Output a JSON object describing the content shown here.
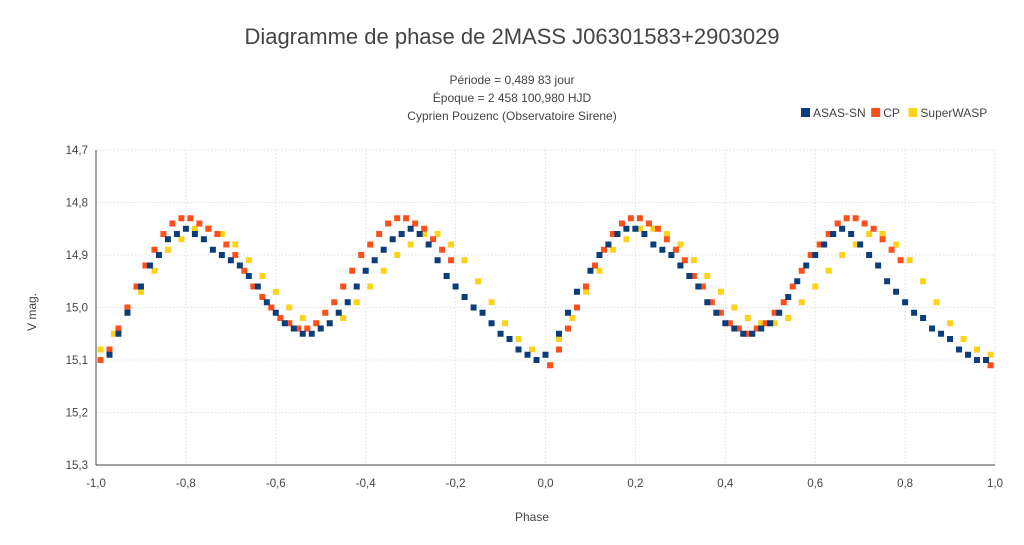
{
  "chart_data": {
    "type": "scatter",
    "title": "Diagramme de phase de 2MASS J06301583+2903029",
    "subtitle_lines": [
      "Période = 0,489 83 jour",
      "Époque = 2 458 100,980 HJD",
      "Cyprien Pouzenc (Observatoire Sirene)"
    ],
    "xlabel": "Phase",
    "ylabel": "V mag.",
    "xlim": [
      -1.0,
      1.0
    ],
    "ylim": [
      15.3,
      14.7
    ],
    "y_inverted": true,
    "x_ticks": [
      "-1,0",
      "-0,8",
      "-0,6",
      "-0,4",
      "-0,2",
      "0,0",
      "0,2",
      "0,4",
      "0,6",
      "0,8",
      "1,0"
    ],
    "y_ticks": [
      "14,7",
      "14,8",
      "14,9",
      "15,0",
      "15,1",
      "15,2",
      "15,3"
    ],
    "grid": true,
    "legend_position": "top-right",
    "series": [
      {
        "name": "ASAS-SN",
        "color": "#0b3d7a",
        "x": [
          -0.97,
          -0.95,
          -0.93,
          -0.9,
          -0.88,
          -0.86,
          -0.84,
          -0.82,
          -0.8,
          -0.78,
          -0.76,
          -0.74,
          -0.72,
          -0.7,
          -0.68,
          -0.66,
          -0.64,
          -0.62,
          -0.6,
          -0.58,
          -0.56,
          -0.54,
          -0.52,
          -0.5,
          -0.48,
          -0.46,
          -0.44,
          -0.42,
          -0.4,
          -0.38,
          -0.36,
          -0.34,
          -0.32,
          -0.3,
          -0.28,
          -0.26,
          -0.24,
          -0.22,
          -0.2,
          -0.18,
          -0.16,
          -0.14,
          -0.12,
          -0.1,
          -0.08,
          -0.06,
          -0.04,
          -0.02,
          0.0,
          0.03,
          0.05,
          0.07,
          0.1,
          0.12,
          0.14,
          0.16,
          0.18,
          0.2,
          0.22,
          0.24,
          0.26,
          0.28,
          0.3,
          0.32,
          0.34,
          0.36,
          0.38,
          0.4,
          0.42,
          0.44,
          0.46,
          0.48,
          0.5,
          0.52,
          0.54,
          0.56,
          0.58,
          0.6,
          0.62,
          0.64,
          0.66,
          0.68,
          0.7,
          0.72,
          0.74,
          0.76,
          0.78,
          0.8,
          0.82,
          0.84,
          0.86,
          0.88,
          0.9,
          0.92,
          0.94,
          0.96,
          0.98
        ],
        "y": [
          15.09,
          15.05,
          15.01,
          14.96,
          14.92,
          14.9,
          14.87,
          14.86,
          14.85,
          14.86,
          14.87,
          14.89,
          14.9,
          14.91,
          14.92,
          14.94,
          14.96,
          14.99,
          15.01,
          15.03,
          15.04,
          15.05,
          15.05,
          15.04,
          15.03,
          15.01,
          14.99,
          14.96,
          14.93,
          14.91,
          14.89,
          14.87,
          14.86,
          14.85,
          14.86,
          14.88,
          14.91,
          14.94,
          14.96,
          14.98,
          15.0,
          15.01,
          15.03,
          15.05,
          15.06,
          15.08,
          15.09,
          15.1,
          15.09,
          15.05,
          15.01,
          14.97,
          14.93,
          14.9,
          14.88,
          14.86,
          14.85,
          14.85,
          14.86,
          14.88,
          14.89,
          14.9,
          14.92,
          14.94,
          14.96,
          14.99,
          15.01,
          15.03,
          15.04,
          15.05,
          15.05,
          15.04,
          15.03,
          15.01,
          14.98,
          14.95,
          14.92,
          14.9,
          14.88,
          14.86,
          14.85,
          14.86,
          14.88,
          14.9,
          14.92,
          14.95,
          14.97,
          14.99,
          15.01,
          15.02,
          15.04,
          15.05,
          15.06,
          15.08,
          15.09,
          15.1,
          15.1
        ]
      },
      {
        "name": "CP",
        "color": "#ff4f1a",
        "x": [
          -0.99,
          -0.97,
          -0.95,
          -0.93,
          -0.91,
          -0.89,
          -0.87,
          -0.85,
          -0.83,
          -0.81,
          -0.79,
          -0.77,
          -0.75,
          -0.73,
          -0.71,
          -0.69,
          -0.67,
          -0.65,
          -0.63,
          -0.61,
          -0.59,
          -0.57,
          -0.55,
          -0.53,
          -0.51,
          -0.49,
          -0.47,
          -0.45,
          -0.43,
          -0.41,
          -0.39,
          -0.37,
          -0.35,
          -0.33,
          -0.31,
          -0.29,
          -0.27,
          -0.25,
          -0.23,
          -0.21,
          0.01,
          0.03,
          0.05,
          0.07,
          0.09,
          0.11,
          0.13,
          0.15,
          0.17,
          0.19,
          0.21,
          0.23,
          0.25,
          0.27,
          0.29,
          0.31,
          0.33,
          0.35,
          0.37,
          0.39,
          0.41,
          0.43,
          0.45,
          0.47,
          0.49,
          0.51,
          0.53,
          0.55,
          0.57,
          0.59,
          0.61,
          0.63,
          0.65,
          0.67,
          0.69,
          0.71,
          0.73,
          0.75,
          0.77,
          0.79,
          0.99
        ],
        "y": [
          15.1,
          15.08,
          15.04,
          15.0,
          14.96,
          14.92,
          14.89,
          14.86,
          14.84,
          14.83,
          14.83,
          14.84,
          14.85,
          14.86,
          14.88,
          14.9,
          14.93,
          14.96,
          14.98,
          15.0,
          15.02,
          15.03,
          15.04,
          15.04,
          15.03,
          15.01,
          14.99,
          14.96,
          14.93,
          14.9,
          14.88,
          14.86,
          14.84,
          14.83,
          14.83,
          14.84,
          14.85,
          14.87,
          14.89,
          14.91,
          15.11,
          15.08,
          15.04,
          15.0,
          14.96,
          14.92,
          14.89,
          14.86,
          14.84,
          14.83,
          14.83,
          14.84,
          14.85,
          14.87,
          14.89,
          14.91,
          14.94,
          14.96,
          14.99,
          15.01,
          15.03,
          15.04,
          15.05,
          15.04,
          15.03,
          15.01,
          14.99,
          14.96,
          14.93,
          14.9,
          14.88,
          14.86,
          14.84,
          14.83,
          14.83,
          14.84,
          14.85,
          14.87,
          14.89,
          14.91,
          15.11
        ]
      },
      {
        "name": "SuperWASP",
        "color": "#ffd21a",
        "x": [
          -0.99,
          -0.96,
          -0.93,
          -0.9,
          -0.87,
          -0.84,
          -0.81,
          -0.78,
          -0.75,
          -0.72,
          -0.69,
          -0.66,
          -0.63,
          -0.6,
          -0.57,
          -0.54,
          -0.51,
          -0.48,
          -0.45,
          -0.42,
          -0.39,
          -0.36,
          -0.33,
          -0.3,
          -0.27,
          -0.24,
          -0.21,
          -0.18,
          -0.15,
          -0.12,
          -0.09,
          -0.06,
          -0.03,
          0.0,
          0.03,
          0.06,
          0.09,
          0.12,
          0.15,
          0.18,
          0.21,
          0.24,
          0.27,
          0.3,
          0.33,
          0.36,
          0.39,
          0.42,
          0.45,
          0.48,
          0.51,
          0.54,
          0.57,
          0.6,
          0.63,
          0.66,
          0.69,
          0.72,
          0.75,
          0.78,
          0.81,
          0.84,
          0.87,
          0.9,
          0.93,
          0.96,
          0.99
        ],
        "y": [
          15.08,
          15.05,
          15.01,
          14.97,
          14.93,
          14.89,
          14.87,
          14.85,
          14.85,
          14.86,
          14.88,
          14.91,
          14.94,
          14.97,
          15.0,
          15.02,
          15.03,
          15.03,
          15.02,
          14.99,
          14.96,
          14.93,
          14.9,
          14.88,
          14.86,
          14.86,
          14.88,
          14.91,
          14.95,
          14.99,
          15.03,
          15.06,
          15.08,
          15.09,
          15.06,
          15.02,
          14.97,
          14.93,
          14.89,
          14.87,
          14.85,
          14.85,
          14.86,
          14.88,
          14.91,
          14.94,
          14.97,
          15.0,
          15.02,
          15.03,
          15.03,
          15.02,
          14.99,
          14.96,
          14.93,
          14.9,
          14.88,
          14.86,
          14.86,
          14.88,
          14.91,
          14.95,
          14.99,
          15.03,
          15.06,
          15.08,
          15.09
        ]
      }
    ]
  }
}
